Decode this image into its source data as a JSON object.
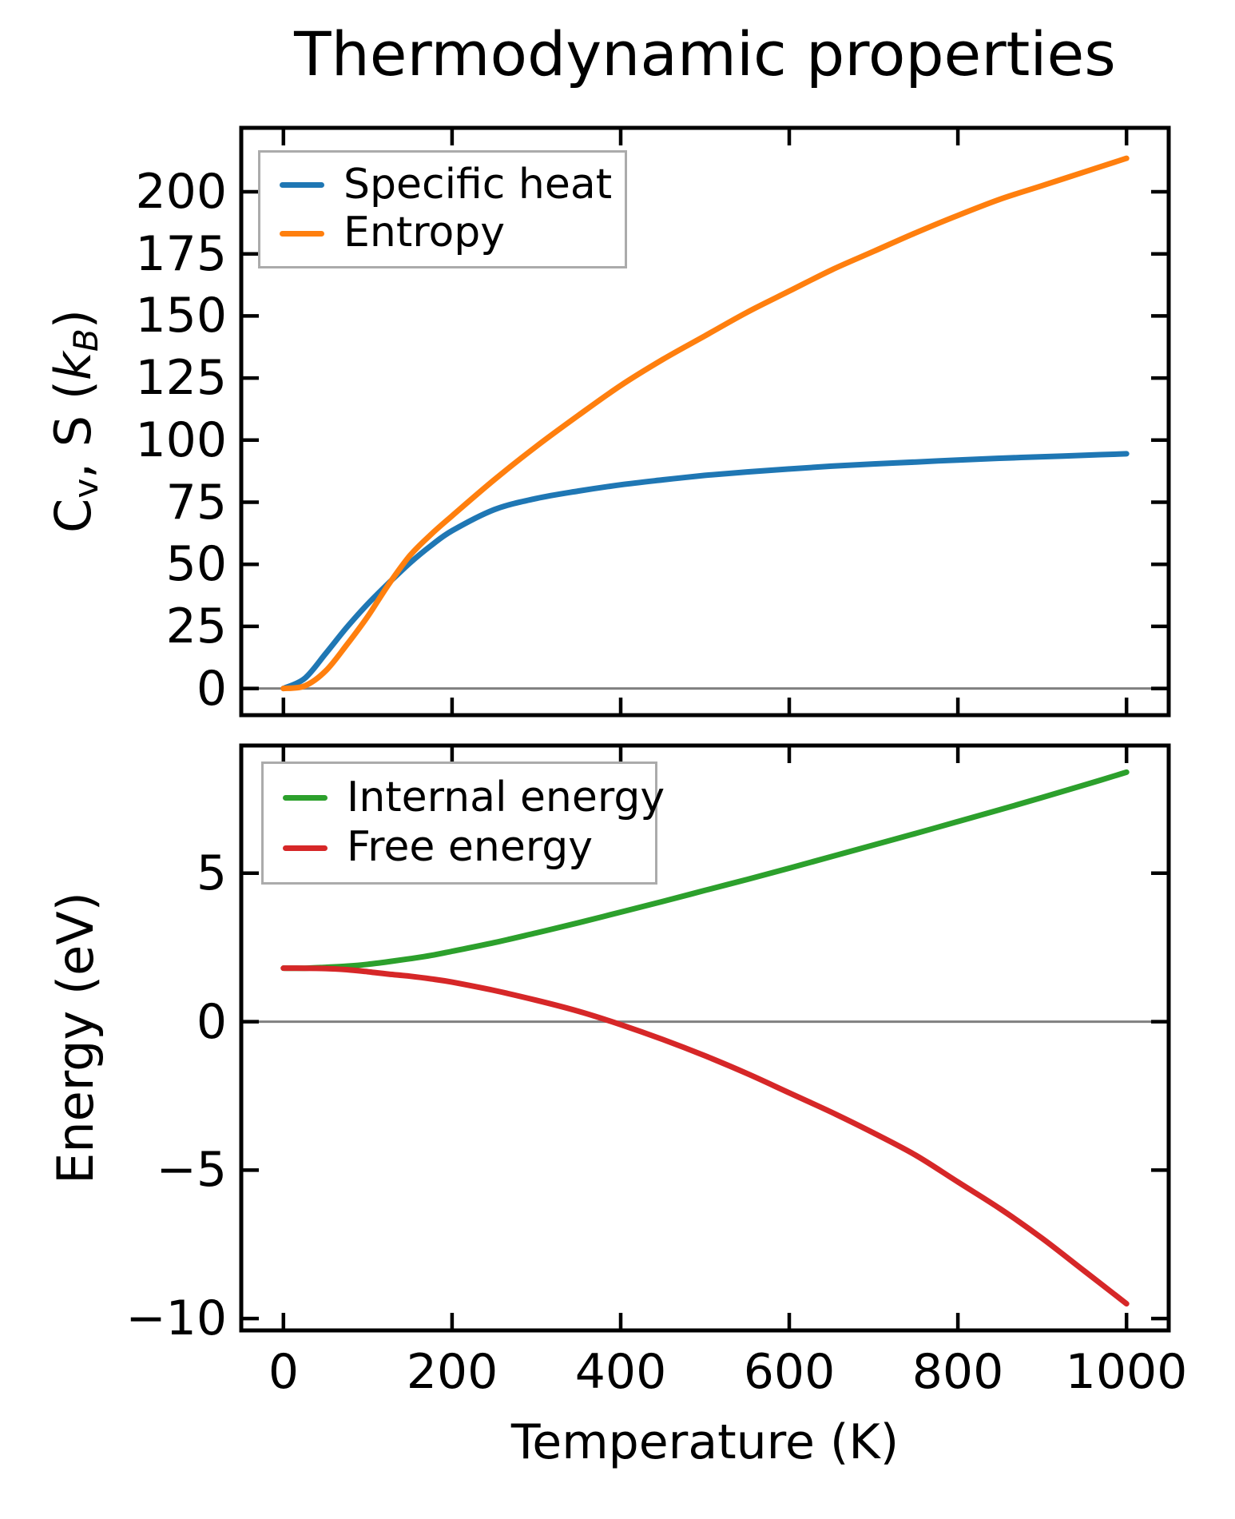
{
  "title": "Thermodynamic properties",
  "figure": {
    "background": "#ffffff",
    "spine_color": "#000000",
    "spine_width": 5,
    "tick_length": 22,
    "tick_width": 4.5,
    "zero_line_color": "#808080",
    "zero_line_width": 3,
    "curve_width": 7,
    "legend_border_color": "#ababab",
    "text_color": "#000000"
  },
  "chart_data": [
    {
      "type": "line",
      "panel": "top",
      "title": "",
      "xlabel": "",
      "ylabel": "Cv, S (kB)",
      "ylabel_segments": [
        {
          "t": "C"
        },
        {
          "t": "v",
          "sub": true
        },
        {
          "t": ", S ("
        },
        {
          "t": "k",
          "i": true
        },
        {
          "t": "B",
          "sub": true,
          "i": true
        },
        {
          "t": ")"
        }
      ],
      "x": [
        0,
        25,
        50,
        75,
        100,
        125,
        150,
        175,
        200,
        250,
        300,
        350,
        400,
        450,
        500,
        550,
        600,
        650,
        700,
        750,
        800,
        850,
        900,
        950,
        1000
      ],
      "series": [
        {
          "name": "Specific heat",
          "color": "#1f77b4",
          "values": [
            0,
            4,
            14,
            24.5,
            34,
            42.5,
            50.5,
            57.5,
            63.5,
            72,
            76.5,
            79.5,
            82,
            84,
            85.8,
            87.2,
            88.4,
            89.5,
            90.4,
            91.2,
            92,
            92.7,
            93.3,
            93.9,
            94.5
          ]
        },
        {
          "name": "Entropy",
          "color": "#ff7f0e",
          "values": [
            0,
            1,
            7,
            17.5,
            29,
            42,
            53.5,
            62,
            69.5,
            84,
            97.5,
            110,
            122,
            132.5,
            142,
            151.5,
            160,
            168.5,
            176,
            183.5,
            190.5,
            197,
            202.5,
            208,
            213.5
          ]
        }
      ],
      "xlim": [
        -50,
        1050
      ],
      "ylim": [
        -10.75,
        225.75
      ],
      "xticks": [
        0,
        200,
        400,
        600,
        800,
        1000
      ],
      "xtick_labels": [
        "0",
        "200",
        "400",
        "600",
        "800",
        "1000"
      ],
      "show_xtick_labels": false,
      "yticks": [
        0,
        25,
        50,
        75,
        100,
        125,
        150,
        175,
        200
      ],
      "ytick_labels": [
        "0",
        "25",
        "50",
        "75",
        "100",
        "125",
        "150",
        "175",
        "200"
      ],
      "grid": false,
      "zero_line": true,
      "legend_position": "upper left"
    },
    {
      "type": "line",
      "panel": "bottom",
      "title": "",
      "xlabel": "Temperature (K)",
      "ylabel": "Energy (eV)",
      "x": [
        0,
        25,
        50,
        75,
        100,
        125,
        150,
        175,
        200,
        250,
        300,
        350,
        400,
        450,
        500,
        550,
        600,
        650,
        700,
        750,
        800,
        850,
        900,
        950,
        1000
      ],
      "series": [
        {
          "name": "Internal energy",
          "color": "#2ca02c",
          "values": [
            1.8,
            1.8,
            1.83,
            1.87,
            1.93,
            2.02,
            2.12,
            2.23,
            2.37,
            2.66,
            2.99,
            3.33,
            3.69,
            4.05,
            4.42,
            4.79,
            5.17,
            5.56,
            5.95,
            6.34,
            6.74,
            7.14,
            7.55,
            7.97,
            8.4
          ]
        },
        {
          "name": "Free energy",
          "color": "#d62728",
          "values": [
            1.8,
            1.8,
            1.79,
            1.75,
            1.68,
            1.6,
            1.53,
            1.44,
            1.33,
            1.05,
            0.72,
            0.35,
            -0.1,
            -0.6,
            -1.15,
            -1.75,
            -2.4,
            -3.05,
            -3.75,
            -4.5,
            -5.4,
            -6.3,
            -7.3,
            -8.4,
            -9.5
          ]
        }
      ],
      "xlim": [
        -50,
        1050
      ],
      "ylim": [
        -10.4,
        9.3
      ],
      "xticks": [
        0,
        200,
        400,
        600,
        800,
        1000
      ],
      "xtick_labels": [
        "0",
        "200",
        "400",
        "600",
        "800",
        "1000"
      ],
      "show_xtick_labels": true,
      "yticks": [
        -10,
        -5,
        0,
        5
      ],
      "ytick_labels": [
        "−10",
        "−5",
        "0",
        "5"
      ],
      "grid": false,
      "zero_line": true,
      "legend_position": "upper left"
    }
  ]
}
